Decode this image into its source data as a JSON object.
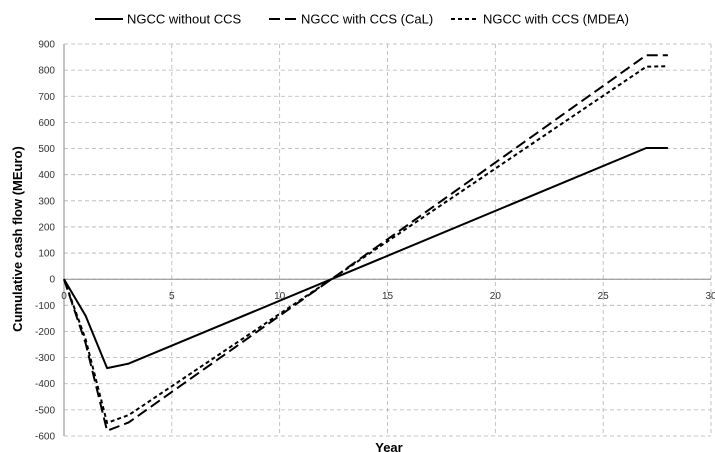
{
  "chart_data": {
    "type": "line",
    "title": "",
    "xlabel": "Year",
    "ylabel": "Cumulative cash flow (MEuro)",
    "xlim": [
      0,
      30
    ],
    "ylim": [
      -600,
      900
    ],
    "x_ticks": [
      "0",
      "5",
      "10",
      "15",
      "20",
      "25",
      "30"
    ],
    "y_ticks": [
      "900",
      "800",
      "700",
      "600",
      "500",
      "400",
      "300",
      "200",
      "100",
      "0",
      "-100",
      "-200",
      "-300",
      "-400",
      "-500",
      "-600"
    ],
    "grid": true,
    "legend_position": "top",
    "series": [
      {
        "name": "NGCC without CCS",
        "style": "solid",
        "color": "#000000",
        "points": [
          [
            0,
            0
          ],
          [
            1,
            -140
          ],
          [
            2,
            -340
          ],
          [
            3,
            -323
          ],
          [
            12.4,
            0
          ],
          [
            27,
            502
          ],
          [
            28,
            502
          ]
        ]
      },
      {
        "name": "NGCC with CCS (CaL)",
        "style": "long-dash",
        "color": "#000000",
        "points": [
          [
            0,
            0
          ],
          [
            1,
            -245
          ],
          [
            2,
            -580
          ],
          [
            3,
            -548
          ],
          [
            12.4,
            0
          ],
          [
            27,
            857
          ],
          [
            28,
            857
          ]
        ]
      },
      {
        "name": "NGCC with CCS (MDEA)",
        "style": "short-dash",
        "color": "#000000",
        "points": [
          [
            0,
            0
          ],
          [
            1,
            -230
          ],
          [
            2,
            -550
          ],
          [
            3,
            -520
          ],
          [
            12.4,
            0
          ],
          [
            27,
            813
          ],
          [
            28,
            815
          ]
        ]
      }
    ]
  }
}
